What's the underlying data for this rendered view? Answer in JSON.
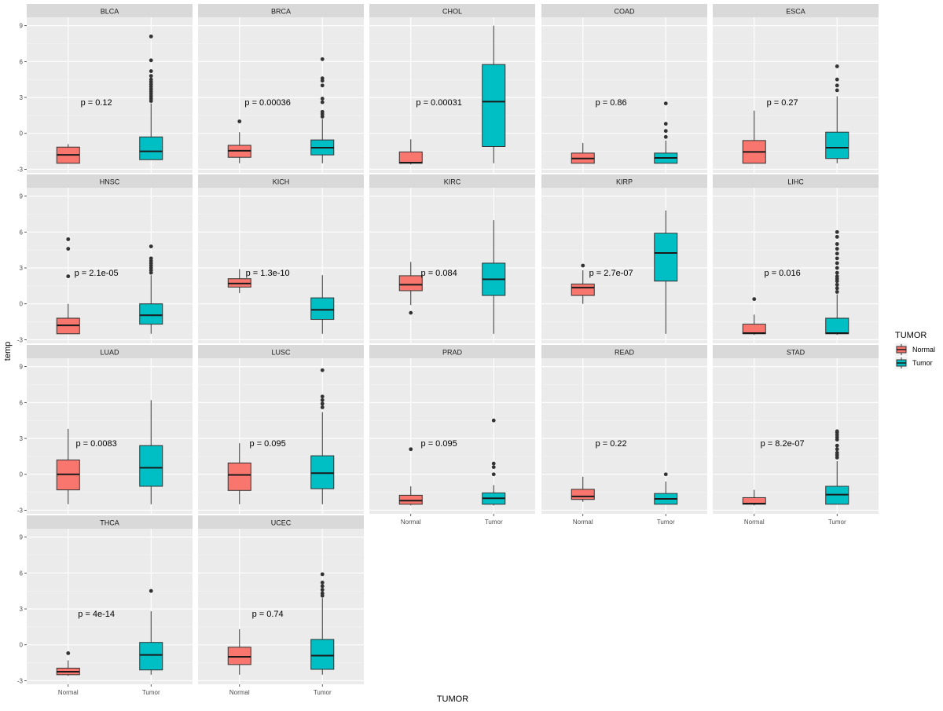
{
  "chart_data": {
    "type": "box",
    "title": "",
    "xlabel": "TUMOR",
    "ylabel": "temp",
    "ylim": [
      -3.3,
      9.7
    ],
    "yticks": [
      -3,
      0,
      3,
      6,
      9
    ],
    "categories": [
      "Normal",
      "Tumor"
    ],
    "legend": {
      "title": "TUMOR",
      "position": "right",
      "entries": [
        {
          "label": "Normal",
          "color": "#F8766D"
        },
        {
          "label": "Tumor",
          "color": "#00BFC4"
        }
      ]
    },
    "panels": [
      {
        "name": "BLCA",
        "p_label": "p = 0.12",
        "boxes": [
          {
            "group": "Normal",
            "lower": -2.5,
            "q1": -2.5,
            "median": -1.8,
            "q3": -1.15,
            "upper": -0.9,
            "outliers": []
          },
          {
            "group": "Tumor",
            "lower": -2.2,
            "q1": -2.2,
            "median": -1.5,
            "q3": -0.3,
            "upper": 2.5,
            "outliers": [
              2.7,
              2.9,
              3.1,
              3.3,
              3.5,
              3.7,
              3.9,
              4.1,
              4.3,
              4.5,
              4.8,
              5.2,
              6.1,
              8.1
            ]
          }
        ]
      },
      {
        "name": "BRCA",
        "p_label": "p = 0.00036",
        "boxes": [
          {
            "group": "Normal",
            "lower": -2.5,
            "q1": -2.0,
            "median": -1.45,
            "q3": -1.0,
            "upper": 0.1,
            "outliers": [
              1.0
            ]
          },
          {
            "group": "Tumor",
            "lower": -2.5,
            "q1": -1.8,
            "median": -1.2,
            "q3": -0.55,
            "upper": 1.2,
            "outliers": [
              1.4,
              1.6,
              1.8,
              2.6,
              2.9,
              4.0,
              4.4,
              4.6,
              6.2
            ]
          }
        ]
      },
      {
        "name": "CHOL",
        "p_label": "p = 0.00031",
        "boxes": [
          {
            "group": "Normal",
            "lower": -2.6,
            "q1": -2.5,
            "median": -2.45,
            "q3": -1.55,
            "upper": -0.5,
            "outliers": []
          },
          {
            "group": "Tumor",
            "lower": -2.5,
            "q1": -1.1,
            "median": 2.65,
            "q3": 5.75,
            "upper": 9.0,
            "outliers": []
          }
        ]
      },
      {
        "name": "COAD",
        "p_label": "p = 0.86",
        "boxes": [
          {
            "group": "Normal",
            "lower": -2.5,
            "q1": -2.5,
            "median": -2.1,
            "q3": -1.65,
            "upper": -0.8,
            "outliers": []
          },
          {
            "group": "Tumor",
            "lower": -2.5,
            "q1": -2.5,
            "median": -2.05,
            "q3": -1.65,
            "upper": -0.6,
            "outliers": [
              -0.3,
              0.2,
              0.8,
              2.5
            ]
          }
        ]
      },
      {
        "name": "ESCA",
        "p_label": "p = 0.27",
        "boxes": [
          {
            "group": "Normal",
            "lower": -2.5,
            "q1": -2.5,
            "median": -1.55,
            "q3": -0.6,
            "upper": 1.9,
            "outliers": []
          },
          {
            "group": "Tumor",
            "lower": -2.5,
            "q1": -2.1,
            "median": -1.2,
            "q3": 0.1,
            "upper": 3.1,
            "outliers": [
              3.6,
              4.0,
              4.5,
              5.6
            ]
          }
        ]
      },
      {
        "name": "HNSC",
        "p_label": "p = 2.1e-05",
        "boxes": [
          {
            "group": "Normal",
            "lower": -2.5,
            "q1": -2.5,
            "median": -1.8,
            "q3": -1.2,
            "upper": 0.0,
            "outliers": [
              2.3,
              4.6,
              5.4
            ]
          },
          {
            "group": "Tumor",
            "lower": -2.5,
            "q1": -1.7,
            "median": -0.95,
            "q3": 0.0,
            "upper": 2.4,
            "outliers": [
              2.6,
              2.8,
              3.0,
              3.2,
              3.4,
              3.6,
              3.8,
              4.8
            ]
          }
        ]
      },
      {
        "name": "KICH",
        "p_label": "p = 1.3e-10",
        "boxes": [
          {
            "group": "Normal",
            "lower": 0.9,
            "q1": 1.4,
            "median": 1.7,
            "q3": 2.1,
            "upper": 2.9,
            "outliers": []
          },
          {
            "group": "Tumor",
            "lower": -2.5,
            "q1": -1.3,
            "median": -0.5,
            "q3": 0.5,
            "upper": 2.4,
            "outliers": []
          }
        ]
      },
      {
        "name": "KIRC",
        "p_label": "p = 0.084",
        "boxes": [
          {
            "group": "Normal",
            "lower": -0.1,
            "q1": 1.1,
            "median": 1.6,
            "q3": 2.35,
            "upper": 3.5,
            "outliers": [
              -0.75
            ]
          },
          {
            "group": "Tumor",
            "lower": -2.5,
            "q1": 0.7,
            "median": 2.05,
            "q3": 3.4,
            "upper": 7.0,
            "outliers": []
          }
        ]
      },
      {
        "name": "KIRP",
        "p_label": "p = 2.7e-07",
        "boxes": [
          {
            "group": "Normal",
            "lower": 0.0,
            "q1": 0.7,
            "median": 1.35,
            "q3": 1.65,
            "upper": 2.8,
            "outliers": [
              3.2
            ]
          },
          {
            "group": "Tumor",
            "lower": -2.5,
            "q1": 1.9,
            "median": 4.25,
            "q3": 5.9,
            "upper": 7.8,
            "outliers": []
          }
        ]
      },
      {
        "name": "LIHC",
        "p_label": "p = 0.016",
        "boxes": [
          {
            "group": "Normal",
            "lower": -2.6,
            "q1": -2.5,
            "median": -2.45,
            "q3": -1.7,
            "upper": -0.9,
            "outliers": [
              0.4
            ]
          },
          {
            "group": "Tumor",
            "lower": -2.6,
            "q1": -2.5,
            "median": -2.45,
            "q3": -1.2,
            "upper": 0.8,
            "outliers": [
              1.0,
              1.3,
              1.6,
              1.9,
              2.1,
              2.3,
              2.6,
              3.0,
              3.4,
              3.8,
              4.2,
              4.6,
              5.0,
              5.6,
              6.0
            ]
          }
        ]
      },
      {
        "name": "LUAD",
        "p_label": "p = 0.0083",
        "boxes": [
          {
            "group": "Normal",
            "lower": -2.5,
            "q1": -1.3,
            "median": 0.0,
            "q3": 1.2,
            "upper": 3.8,
            "outliers": []
          },
          {
            "group": "Tumor",
            "lower": -2.5,
            "q1": -1.0,
            "median": 0.55,
            "q3": 2.4,
            "upper": 6.2,
            "outliers": []
          }
        ]
      },
      {
        "name": "LUSC",
        "p_label": "p = 0.095",
        "boxes": [
          {
            "group": "Normal",
            "lower": -2.5,
            "q1": -1.35,
            "median": -0.05,
            "q3": 0.95,
            "upper": 2.6,
            "outliers": []
          },
          {
            "group": "Tumor",
            "lower": -2.5,
            "q1": -1.2,
            "median": 0.1,
            "q3": 1.55,
            "upper": 5.2,
            "outliers": [
              5.6,
              5.9,
              6.2,
              6.5,
              8.7
            ]
          }
        ]
      },
      {
        "name": "PRAD",
        "p_label": "p = 0.095",
        "boxes": [
          {
            "group": "Normal",
            "lower": -2.6,
            "q1": -2.5,
            "median": -2.2,
            "q3": -1.75,
            "upper": -1.0,
            "outliers": [
              2.1
            ]
          },
          {
            "group": "Tumor",
            "lower": -2.6,
            "q1": -2.5,
            "median": -2.0,
            "q3": -1.55,
            "upper": -0.9,
            "outliers": [
              0.0,
              0.6,
              0.9,
              4.5
            ]
          }
        ]
      },
      {
        "name": "READ",
        "p_label": "p = 0.22",
        "boxes": [
          {
            "group": "Normal",
            "lower": -2.3,
            "q1": -2.1,
            "median": -1.85,
            "q3": -1.25,
            "upper": -0.2,
            "outliers": []
          },
          {
            "group": "Tumor",
            "lower": -2.5,
            "q1": -2.5,
            "median": -2.05,
            "q3": -1.6,
            "upper": -0.6,
            "outliers": [
              0.0
            ]
          }
        ]
      },
      {
        "name": "STAD",
        "p_label": "p = 8.2e-07",
        "boxes": [
          {
            "group": "Normal",
            "lower": -2.6,
            "q1": -2.5,
            "median": -2.45,
            "q3": -1.95,
            "upper": -1.3,
            "outliers": []
          },
          {
            "group": "Tumor",
            "lower": -2.5,
            "q1": -2.5,
            "median": -1.7,
            "q3": -1.0,
            "upper": 1.1,
            "outliers": [
              1.4,
              1.6,
              1.8,
              2.1,
              2.4,
              2.9,
              3.1,
              3.3,
              3.5,
              3.6
            ]
          }
        ]
      },
      {
        "name": "THCA",
        "p_label": "p = 4e-14",
        "boxes": [
          {
            "group": "Normal",
            "lower": -2.6,
            "q1": -2.5,
            "median": -2.25,
            "q3": -1.95,
            "upper": -1.3,
            "outliers": [
              -0.7
            ]
          },
          {
            "group": "Tumor",
            "lower": -2.5,
            "q1": -2.1,
            "median": -0.85,
            "q3": 0.2,
            "upper": 2.8,
            "outliers": [
              4.5
            ]
          }
        ]
      },
      {
        "name": "UCEC",
        "p_label": "p = 0.74",
        "boxes": [
          {
            "group": "Normal",
            "lower": -2.5,
            "q1": -1.65,
            "median": -1.0,
            "q3": -0.2,
            "upper": 1.3,
            "outliers": []
          },
          {
            "group": "Tumor",
            "lower": -2.5,
            "q1": -2.05,
            "median": -0.9,
            "q3": 0.45,
            "upper": 3.9,
            "outliers": [
              4.1,
              4.3,
              4.6,
              4.9,
              5.2,
              5.9
            ]
          }
        ]
      }
    ]
  }
}
